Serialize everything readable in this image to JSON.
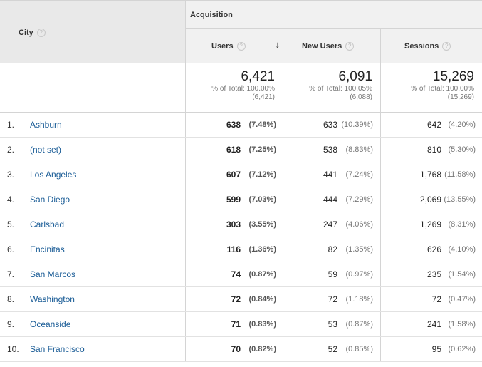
{
  "header": {
    "city_label": "City",
    "group_label": "Acquisition",
    "columns": [
      {
        "label": "Users",
        "sorted": "descending"
      },
      {
        "label": "New Users"
      },
      {
        "label": "Sessions"
      }
    ],
    "help_glyph": "?",
    "sort_glyph": "↓"
  },
  "totals": {
    "users": {
      "value": "6,421",
      "pct_line": "% of Total: 100.00%",
      "of_line": "(6,421)"
    },
    "new_users": {
      "value": "6,091",
      "pct_line": "% of Total: 100.05%",
      "of_line": "(6,088)"
    },
    "sessions": {
      "value": "15,269",
      "pct_line": "% of Total: 100.00%",
      "of_line": "(15,269)"
    }
  },
  "rows": [
    {
      "num": "1.",
      "city": "Ashburn",
      "users": "638",
      "users_pct": "(7.48%)",
      "new_users": "633",
      "new_users_pct": "(10.39%)",
      "sessions": "642",
      "sessions_pct": "(4.20%)"
    },
    {
      "num": "2.",
      "city": "(not set)",
      "users": "618",
      "users_pct": "(7.25%)",
      "new_users": "538",
      "new_users_pct": "(8.83%)",
      "sessions": "810",
      "sessions_pct": "(5.30%)"
    },
    {
      "num": "3.",
      "city": "Los Angeles",
      "users": "607",
      "users_pct": "(7.12%)",
      "new_users": "441",
      "new_users_pct": "(7.24%)",
      "sessions": "1,768",
      "sessions_pct": "(11.58%)"
    },
    {
      "num": "4.",
      "city": "San Diego",
      "users": "599",
      "users_pct": "(7.03%)",
      "new_users": "444",
      "new_users_pct": "(7.29%)",
      "sessions": "2,069",
      "sessions_pct": "(13.55%)"
    },
    {
      "num": "5.",
      "city": "Carlsbad",
      "users": "303",
      "users_pct": "(3.55%)",
      "new_users": "247",
      "new_users_pct": "(4.06%)",
      "sessions": "1,269",
      "sessions_pct": "(8.31%)"
    },
    {
      "num": "6.",
      "city": "Encinitas",
      "users": "116",
      "users_pct": "(1.36%)",
      "new_users": "82",
      "new_users_pct": "(1.35%)",
      "sessions": "626",
      "sessions_pct": "(4.10%)"
    },
    {
      "num": "7.",
      "city": "San Marcos",
      "users": "74",
      "users_pct": "(0.87%)",
      "new_users": "59",
      "new_users_pct": "(0.97%)",
      "sessions": "235",
      "sessions_pct": "(1.54%)"
    },
    {
      "num": "8.",
      "city": "Washington",
      "users": "72",
      "users_pct": "(0.84%)",
      "new_users": "72",
      "new_users_pct": "(1.18%)",
      "sessions": "72",
      "sessions_pct": "(0.47%)"
    },
    {
      "num": "9.",
      "city": "Oceanside",
      "users": "71",
      "users_pct": "(0.83%)",
      "new_users": "53",
      "new_users_pct": "(0.87%)",
      "sessions": "241",
      "sessions_pct": "(1.58%)"
    },
    {
      "num": "10.",
      "city": "San Francisco",
      "users": "70",
      "users_pct": "(0.82%)",
      "new_users": "52",
      "new_users_pct": "(0.85%)",
      "sessions": "95",
      "sessions_pct": "(0.62%)"
    }
  ],
  "colors": {
    "link": "#1a5c96",
    "header_bg": "#e9e9e9",
    "subheader_bg": "#f1f1f1",
    "border": "#d4d4d4"
  }
}
